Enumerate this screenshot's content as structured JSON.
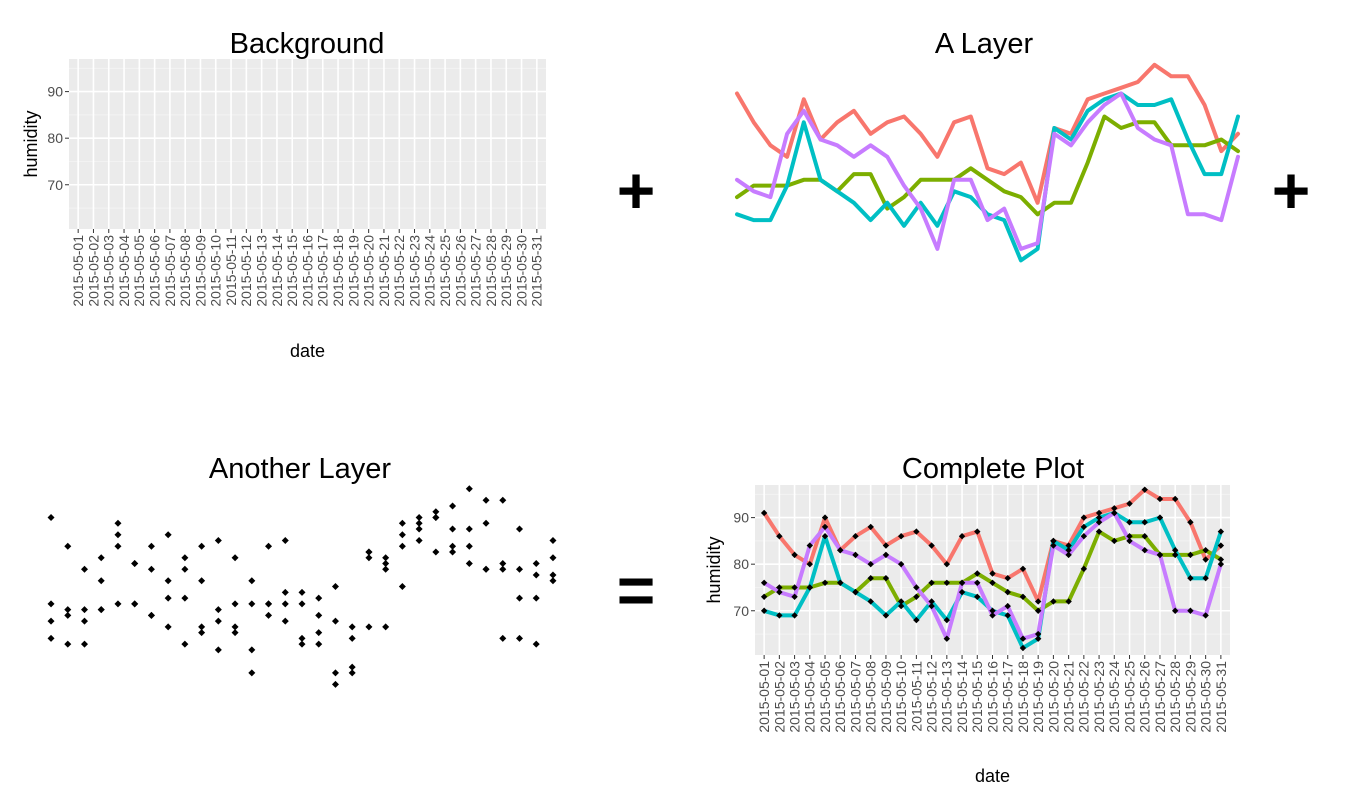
{
  "operators": {
    "plus": "+",
    "equals": "="
  },
  "panels": {
    "background": {
      "title": "Background",
      "xlabel": "date",
      "ylabel": "humidity"
    },
    "layer": {
      "title": "A Layer"
    },
    "points": {
      "title": "Another Layer"
    },
    "complete": {
      "title": "Complete Plot",
      "xlabel": "date",
      "ylabel": "humidity"
    }
  },
  "chart_data": {
    "type": "line",
    "x": [
      "2015-05-01",
      "2015-05-02",
      "2015-05-03",
      "2015-05-04",
      "2015-05-05",
      "2015-05-06",
      "2015-05-07",
      "2015-05-08",
      "2015-05-09",
      "2015-05-10",
      "2015-05-11",
      "2015-05-12",
      "2015-05-13",
      "2015-05-14",
      "2015-05-15",
      "2015-05-16",
      "2015-05-17",
      "2015-05-18",
      "2015-05-19",
      "2015-05-20",
      "2015-05-21",
      "2015-05-22",
      "2015-05-23",
      "2015-05-24",
      "2015-05-25",
      "2015-05-26",
      "2015-05-27",
      "2015-05-28",
      "2015-05-29",
      "2015-05-30",
      "2015-05-31"
    ],
    "ylim": [
      60.5,
      97
    ],
    "yticks": [
      70,
      80,
      90
    ],
    "grid": true,
    "legend": "none",
    "series": [
      {
        "color": "#F8766D",
        "values": [
          91,
          86,
          82,
          80,
          90,
          83,
          86,
          88,
          84,
          86,
          87,
          84,
          80,
          86,
          87,
          78,
          77,
          79,
          72,
          85,
          84,
          90,
          91,
          92,
          93,
          96,
          94,
          94,
          89,
          81,
          84
        ]
      },
      {
        "color": "#7CAE00",
        "values": [
          73,
          75,
          75,
          75,
          76,
          76,
          74,
          77,
          77,
          71,
          73,
          76,
          76,
          76,
          78,
          76,
          74,
          73,
          70,
          72,
          72,
          79,
          87,
          85,
          86,
          86,
          82,
          82,
          82,
          83,
          81
        ]
      },
      {
        "color": "#00BFC4",
        "values": [
          70,
          69,
          69,
          75,
          86,
          76,
          74,
          72,
          69,
          72,
          68,
          72,
          68,
          74,
          73,
          70,
          69,
          62,
          64,
          85,
          83,
          88,
          90,
          91,
          89,
          89,
          90,
          83,
          77,
          77,
          87
        ]
      },
      {
        "color": "#C77CFF",
        "values": [
          76,
          74,
          73,
          84,
          88,
          83,
          82,
          80,
          82,
          80,
          75,
          71,
          64,
          76,
          76,
          69,
          71,
          64,
          65,
          84,
          82,
          86,
          89,
          91,
          85,
          83,
          82,
          70,
          70,
          69,
          80
        ]
      }
    ]
  }
}
